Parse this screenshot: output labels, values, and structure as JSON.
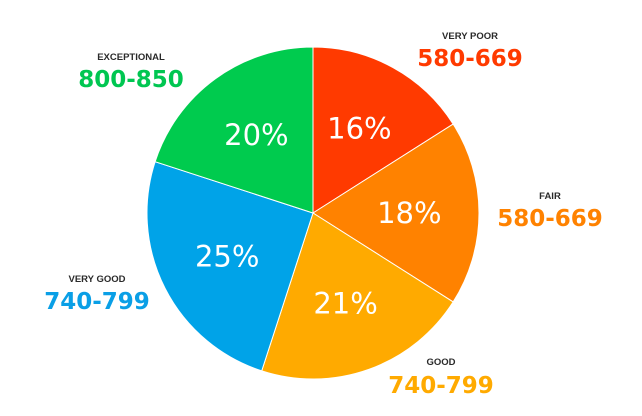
{
  "chart_data": {
    "type": "pie",
    "start_angle_deg": 0,
    "direction": "clockwise",
    "slices": [
      {
        "name": "VERY POOR",
        "range": "580-669",
        "value": 16,
        "label": "16%",
        "color": "#ff3a00",
        "label_color": "#ff3a00"
      },
      {
        "name": "FAIR",
        "range": "580-669",
        "value": 18,
        "label": "18%",
        "color": "#ff8200",
        "label_color": "#ff8200"
      },
      {
        "name": "GOOD",
        "range": "740-799",
        "value": 21,
        "label": "21%",
        "color": "#ffaa00",
        "label_color": "#ffaa00"
      },
      {
        "name": "VERY GOOD",
        "range": "740-799",
        "value": 25,
        "label": "25%",
        "color": "#00a3e8",
        "label_color": "#0a9fe6"
      },
      {
        "name": "EXCEPTIONAL",
        "range": "800-850",
        "value": 20,
        "label": "20%",
        "color": "#00cb4e",
        "label_color": "#00c651"
      }
    ]
  }
}
